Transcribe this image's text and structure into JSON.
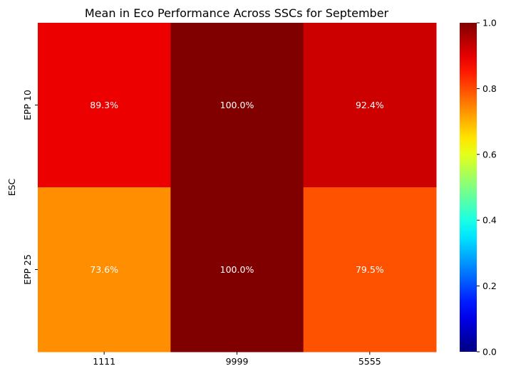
{
  "chart_data": {
    "type": "heatmap",
    "title": "Mean in Eco Performance Across SSCs for September",
    "xlabel": "",
    "ylabel": "ESC",
    "x_categories": [
      "1111",
      "9999",
      "5555"
    ],
    "y_categories": [
      "EPP 10",
      "EPP 25"
    ],
    "values": [
      [
        0.893,
        1.0,
        0.924
      ],
      [
        0.736,
        1.0,
        0.795
      ]
    ],
    "cell_labels": [
      [
        "89.3%",
        "100.0%",
        "92.4%"
      ],
      [
        "73.6%",
        "100.0%",
        "79.5%"
      ]
    ],
    "colormap": "jet",
    "vmin": 0.0,
    "vmax": 1.0,
    "colorbar_ticks": [
      "0.0",
      "0.2",
      "0.4",
      "0.6",
      "0.8",
      "1.0"
    ],
    "colorbar_tick_values": [
      0.0,
      0.2,
      0.4,
      0.6,
      0.8,
      1.0
    ],
    "cell_label_colors": {
      "light": "#ffffff",
      "dark": "#262626"
    }
  }
}
